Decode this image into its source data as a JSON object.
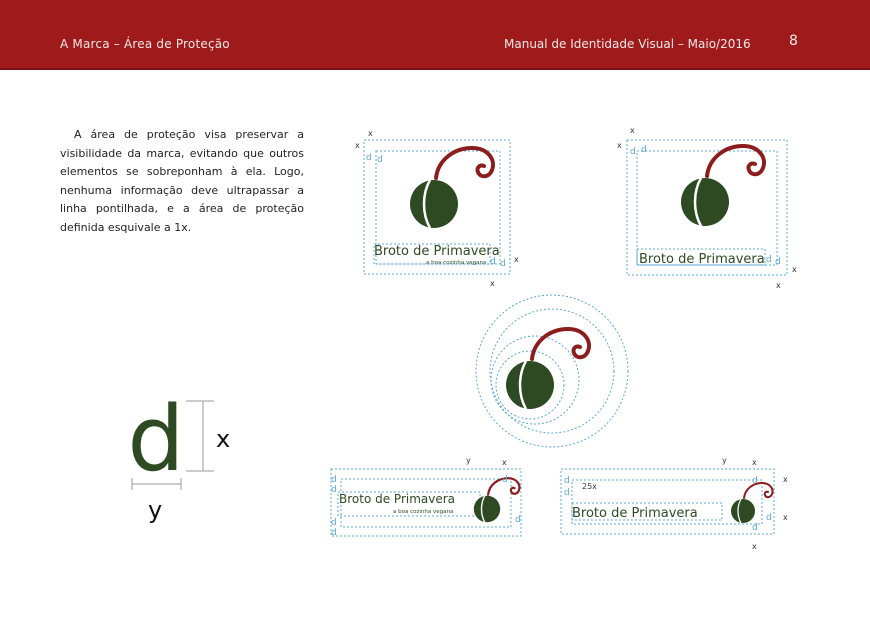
{
  "header": {
    "section": "A Marca – Área de Proteção",
    "manual": "Manual de Identidade Visual – Maio/2016",
    "page_number": "8"
  },
  "intro_text": "A área de proteção visa preservar a visibilidade da marca, evitando que outros elementos se sobreponham à ela. Logo, nenhuma informação deve ultrapassar a linha pontilhada, e a área de proteção definida esquivale a 1x.",
  "brand": {
    "name": "Broto de Primavera",
    "tagline": "a boa cozinha vegana"
  },
  "measure": {
    "x": "x",
    "y": "y",
    "d": "d",
    "spacing_25x": "25x"
  },
  "colors": {
    "header": "#9f1b1b",
    "leaf_green": "#2d4a22",
    "sprout_red": "#8b1d1d",
    "guide_blue": "#5aa8d8"
  }
}
